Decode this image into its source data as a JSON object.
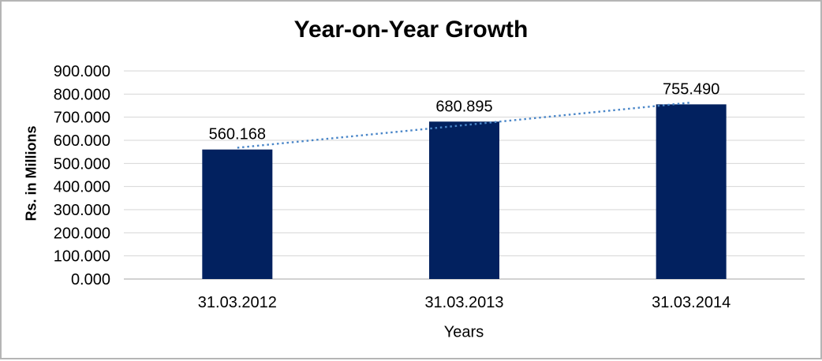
{
  "frame": {
    "background": "#ffffff",
    "border_color": "#b5b5b5"
  },
  "chart_data": {
    "type": "bar",
    "title": "Year-on-Year Growth",
    "xlabel": "Years",
    "ylabel": "Rs. in Millions",
    "categories": [
      "31.03.2012",
      "31.03.2013",
      "31.03.2014"
    ],
    "values": [
      560.168,
      680.895,
      755.49
    ],
    "value_labels": [
      "560.168",
      "680.895",
      "755.490"
    ],
    "ytick_labels": [
      "0.000",
      "100.000",
      "200.000",
      "300.000",
      "400.000",
      "500.000",
      "600.000",
      "700.000",
      "800.000",
      "900.000"
    ],
    "ylim": [
      0,
      900
    ],
    "ytick_step": 100,
    "grid": "horizontal",
    "legend": "none",
    "trendline": {
      "type": "linear",
      "style": "dotted",
      "color": "#4a86c8",
      "span": "first-to-last-category-center"
    },
    "colors": {
      "bar": "#02215f",
      "gridline": "#d6d6d6",
      "axis_line": "#c4c4c4",
      "text": "#000000"
    }
  }
}
